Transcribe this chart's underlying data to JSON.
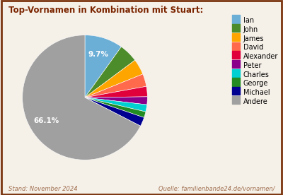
{
  "title": "Top-Vornamen in Kombination mit Stuart:",
  "labels": [
    "Ian",
    "John",
    "James",
    "David",
    "Alexander",
    "Peter",
    "Charles",
    "George",
    "Michael",
    "Andere"
  ],
  "values": [
    9.7,
    4.8,
    4.0,
    3.2,
    2.6,
    2.0,
    1.8,
    1.5,
    2.3,
    66.1
  ],
  "colors": [
    "#6baed6",
    "#4d8c2a",
    "#ffa500",
    "#ff6a4d",
    "#e0003c",
    "#8b008b",
    "#00d0d0",
    "#228b22",
    "#000090",
    "#a0a0a0"
  ],
  "background_color": "#f5f0e8",
  "border_color": "#7b3510",
  "title_color": "#7b2500",
  "footer_left": "Stand: November 2024",
  "footer_right": "Quelle: familienbande24.de/vornamen/",
  "footer_color": "#a07050"
}
